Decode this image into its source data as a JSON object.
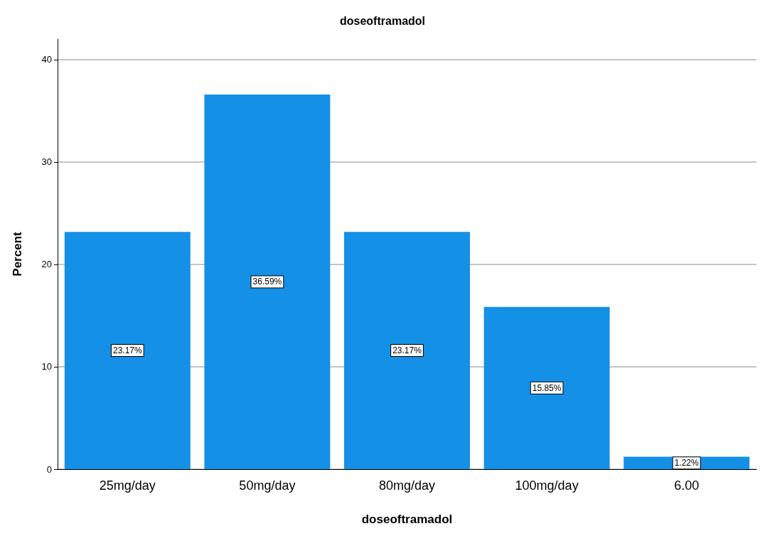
{
  "chart_data": {
    "type": "bar",
    "title": "doseoftramadol",
    "xlabel": "doseoftramadol",
    "ylabel": "Percent",
    "categories": [
      "25mg/day",
      "50mg/day",
      "80mg/day",
      "100mg/day",
      "6.00"
    ],
    "values": [
      23.17,
      36.59,
      23.17,
      15.85,
      1.22
    ],
    "value_labels": [
      "23.17%",
      "36.59%",
      "23.17%",
      "15.85%",
      "1.22%"
    ],
    "color": "#1490e6",
    "ylim": [
      0,
      42
    ],
    "yticks": [
      0,
      10,
      20,
      30,
      40
    ],
    "grid": "y"
  }
}
